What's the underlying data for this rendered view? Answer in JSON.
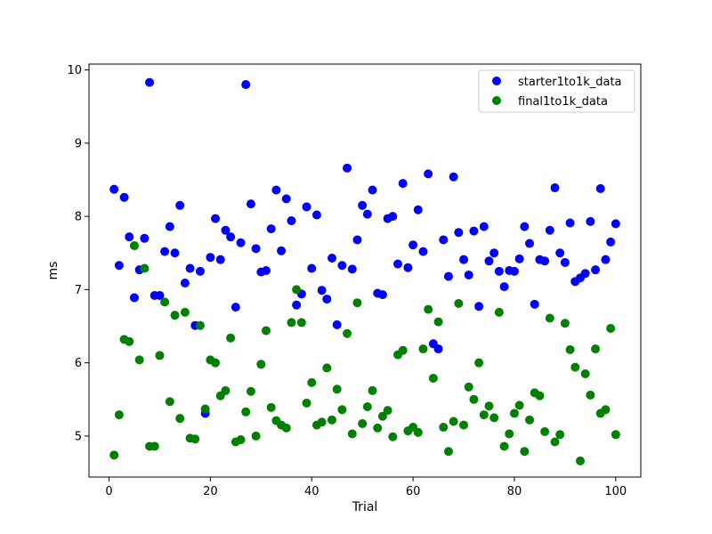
{
  "chart_data": {
    "type": "scatter",
    "title": "",
    "xlabel": "Trial",
    "ylabel": "ms",
    "xlim": [
      -3.95,
      104.95
    ],
    "ylim": [
      4.44,
      10.08
    ],
    "xticks": [
      "0",
      "20",
      "40",
      "60",
      "80",
      "100"
    ],
    "yticks": [
      "5",
      "6",
      "7",
      "8",
      "9",
      "10"
    ],
    "grid": false,
    "legend_position": "top-right",
    "series": [
      {
        "name": "starter1to1k_data",
        "color": "#0000ff",
        "x": [
          1,
          2,
          3,
          4,
          5,
          6,
          7,
          8,
          9,
          10,
          11,
          12,
          13,
          14,
          15,
          16,
          17,
          18,
          19,
          20,
          21,
          22,
          23,
          24,
          25,
          26,
          27,
          28,
          29,
          30,
          31,
          32,
          33,
          34,
          35,
          36,
          37,
          38,
          39,
          40,
          41,
          42,
          43,
          44,
          45,
          46,
          47,
          48,
          49,
          50,
          51,
          52,
          53,
          54,
          55,
          56,
          57,
          58,
          59,
          60,
          61,
          62,
          63,
          64,
          65,
          66,
          67,
          68,
          69,
          70,
          71,
          72,
          73,
          74,
          75,
          76,
          77,
          78,
          79,
          80,
          81,
          82,
          83,
          84,
          85,
          86,
          87,
          88,
          89,
          90,
          91,
          92,
          93,
          94,
          95,
          96,
          97,
          98,
          99,
          100
        ],
        "y": [
          8.37,
          7.33,
          8.26,
          7.72,
          6.89,
          7.27,
          7.7,
          9.83,
          6.92,
          6.92,
          7.52,
          7.86,
          7.5,
          8.15,
          7.09,
          7.29,
          6.51,
          7.25,
          5.31,
          7.44,
          7.97,
          7.41,
          7.81,
          7.72,
          6.76,
          7.64,
          9.8,
          8.17,
          7.56,
          7.24,
          7.26,
          7.83,
          8.36,
          7.53,
          8.24,
          7.94,
          6.79,
          6.94,
          8.13,
          7.29,
          8.02,
          6.99,
          6.87,
          7.43,
          6.52,
          7.33,
          8.66,
          7.28,
          7.68,
          8.15,
          8.03,
          8.36,
          6.95,
          6.93,
          7.97,
          8.0,
          7.35,
          8.45,
          7.3,
          7.61,
          8.09,
          7.52,
          8.58,
          6.26,
          6.19,
          7.68,
          7.18,
          8.54,
          7.78,
          7.41,
          7.2,
          7.8,
          6.77,
          7.86,
          7.39,
          7.5,
          7.25,
          7.04,
          7.26,
          7.25,
          7.42,
          7.86,
          7.63,
          6.8,
          7.41,
          7.39,
          7.81,
          8.39,
          7.5,
          7.37,
          7.91,
          7.11,
          7.16,
          7.22,
          7.93,
          7.27,
          8.38,
          7.41,
          7.65,
          7.9
        ]
      },
      {
        "name": "final1to1k_data",
        "color": "#008000",
        "x": [
          1,
          2,
          3,
          4,
          5,
          6,
          7,
          8,
          9,
          10,
          11,
          12,
          13,
          14,
          15,
          16,
          17,
          18,
          19,
          20,
          21,
          22,
          23,
          24,
          25,
          26,
          27,
          28,
          29,
          30,
          31,
          32,
          33,
          34,
          35,
          36,
          37,
          38,
          39,
          40,
          41,
          42,
          43,
          44,
          45,
          46,
          47,
          48,
          49,
          50,
          51,
          52,
          53,
          54,
          55,
          56,
          57,
          58,
          59,
          60,
          61,
          62,
          63,
          64,
          65,
          66,
          67,
          68,
          69,
          70,
          71,
          72,
          73,
          74,
          75,
          76,
          77,
          78,
          79,
          80,
          81,
          82,
          83,
          84,
          85,
          86,
          87,
          88,
          89,
          90,
          91,
          92,
          93,
          94,
          95,
          96,
          97,
          98,
          99,
          100
        ],
        "y": [
          4.74,
          5.29,
          6.32,
          6.29,
          7.6,
          6.04,
          7.29,
          4.86,
          4.86,
          6.1,
          6.83,
          5.47,
          6.65,
          5.24,
          6.69,
          4.97,
          4.96,
          6.51,
          5.37,
          6.04,
          6.0,
          5.55,
          5.62,
          6.34,
          4.92,
          4.95,
          5.33,
          5.61,
          5.0,
          5.98,
          6.44,
          5.39,
          5.21,
          5.15,
          5.11,
          6.55,
          7.0,
          6.55,
          5.45,
          5.73,
          5.15,
          5.19,
          5.93,
          5.22,
          5.64,
          5.36,
          6.4,
          5.03,
          6.82,
          5.17,
          5.4,
          5.62,
          5.11,
          5.27,
          5.35,
          4.99,
          6.11,
          6.17,
          5.07,
          5.12,
          5.05,
          6.19,
          6.73,
          5.79,
          6.56,
          5.12,
          4.79,
          5.2,
          6.81,
          5.15,
          5.67,
          5.5,
          6.0,
          5.29,
          5.41,
          5.25,
          6.69,
          4.86,
          5.03,
          5.31,
          5.42,
          4.79,
          5.22,
          5.59,
          5.55,
          5.06,
          6.61,
          4.92,
          5.02,
          6.54,
          6.18,
          5.94,
          4.66,
          5.85,
          5.56,
          6.19,
          5.31,
          5.36,
          6.47,
          5.02
        ]
      }
    ]
  }
}
